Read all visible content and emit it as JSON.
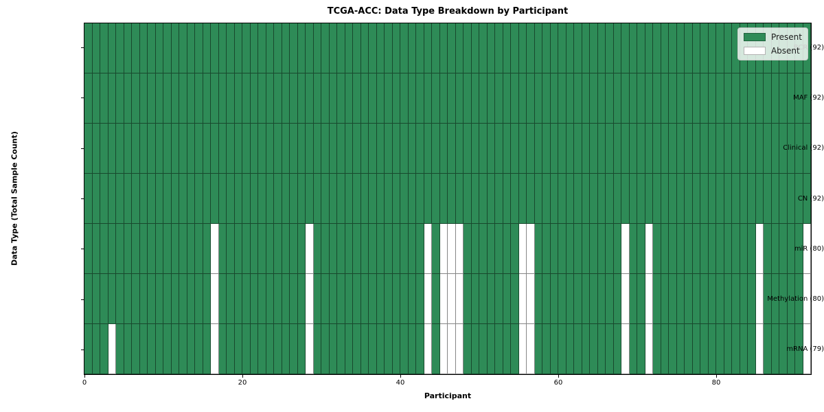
{
  "chart_data": {
    "type": "heatmap",
    "title": "TCGA-ACC: Data Type Breakdown by Participant",
    "xlabel": "Participant",
    "ylabel": "Data Type (Total Sample Count)",
    "n_participants": 92,
    "x_ticks": [
      0,
      20,
      40,
      60,
      80
    ],
    "x_range": [
      0,
      92
    ],
    "grid": false,
    "legend_position": "upper right",
    "legend": {
      "entries": [
        {
          "label": "Present",
          "color": "#2e8b57"
        },
        {
          "label": "Absent",
          "color": "#ffffff"
        }
      ]
    },
    "colors": {
      "present": "#2e8b57",
      "absent": "#ffffff"
    },
    "rows": [
      {
        "label": "BCR (92)",
        "data_type": "BCR",
        "present_count": 92,
        "absent_participants": []
      },
      {
        "label": "MAF (92)",
        "data_type": "MAF",
        "present_count": 92,
        "absent_participants": []
      },
      {
        "label": "Clinical (92)",
        "data_type": "Clinical",
        "present_count": 92,
        "absent_participants": []
      },
      {
        "label": "CN (92)",
        "data_type": "CN",
        "present_count": 92,
        "absent_participants": []
      },
      {
        "label": "miR (80)",
        "data_type": "miR",
        "present_count": 80,
        "absent_participants": [
          16,
          28,
          43,
          45,
          46,
          47,
          55,
          56,
          68,
          71,
          85,
          91
        ]
      },
      {
        "label": "Methylation (80)",
        "data_type": "Methylation",
        "present_count": 80,
        "absent_participants": [
          16,
          28,
          43,
          45,
          46,
          47,
          55,
          56,
          68,
          71,
          85,
          91
        ]
      },
      {
        "label": "mRNA (79)",
        "data_type": "mRNA",
        "present_count": 79,
        "absent_participants": [
          3,
          16,
          28,
          43,
          45,
          46,
          47,
          55,
          56,
          68,
          71,
          85,
          91
        ]
      }
    ]
  }
}
